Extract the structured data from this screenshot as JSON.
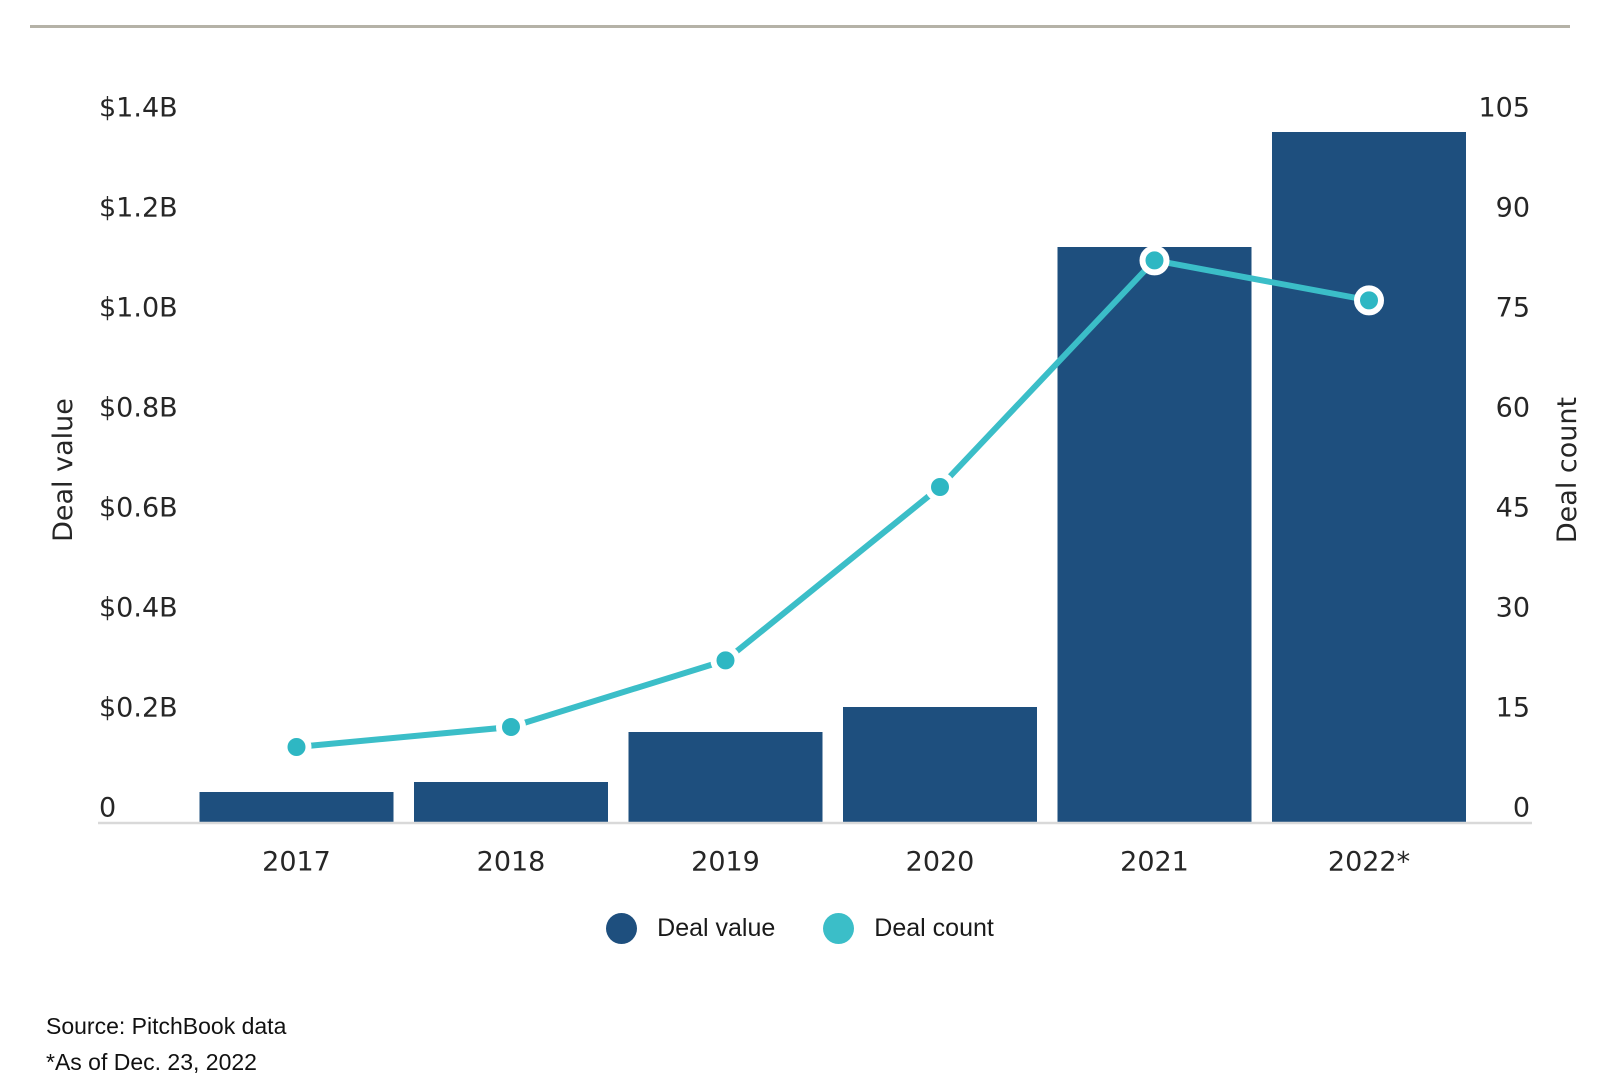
{
  "page": {
    "source_line1": "Source: PitchBook data",
    "source_line2": "*As of Dec. 23, 2022"
  },
  "chart_data": {
    "type": "bar",
    "subtype": "combo bar + line, dual axis",
    "categories": [
      "2017",
      "2018",
      "2019",
      "2020",
      "2021",
      "2022*"
    ],
    "series": [
      {
        "name": "Deal value",
        "type": "bar",
        "axis": "left",
        "unit": "USD billions",
        "values": [
          0.03,
          0.05,
          0.15,
          0.2,
          1.12,
          1.35
        ],
        "color": "#1E4F7E"
      },
      {
        "name": "Deal count",
        "type": "line",
        "axis": "right",
        "values": [
          9,
          12,
          22,
          48,
          82,
          76
        ],
        "color": "#3BBEC8",
        "marker_fill": "#2EB7C3"
      }
    ],
    "left_axis": {
      "title": "Deal value",
      "range": [
        0,
        1.4
      ],
      "ticks": [
        {
          "label": "$1.4B",
          "value": 1.4
        },
        {
          "label": "$1.2B",
          "value": 1.2
        },
        {
          "label": "$1.0B",
          "value": 1.0
        },
        {
          "label": "$0.8B",
          "value": 0.8
        },
        {
          "label": "$0.6B",
          "value": 0.6
        },
        {
          "label": "$0.4B",
          "value": 0.4
        },
        {
          "label": "$0.2B",
          "value": 0.2
        },
        {
          "label": "0",
          "value": 0
        }
      ]
    },
    "right_axis": {
      "title": "Deal count",
      "range": [
        0,
        105
      ],
      "ticks": [
        {
          "label": "105",
          "value": 105
        },
        {
          "label": "90",
          "value": 90
        },
        {
          "label": "75",
          "value": 75
        },
        {
          "label": "60",
          "value": 60
        },
        {
          "label": "45",
          "value": 45
        },
        {
          "label": "30",
          "value": 30
        },
        {
          "label": "15",
          "value": 15
        },
        {
          "label": "0",
          "value": 0
        }
      ]
    },
    "grid": false,
    "legend_position": "bottom-center",
    "legend": [
      {
        "label": "Deal value",
        "color": "#1E4F7E"
      },
      {
        "label": "Deal count",
        "color": "#3BBEC8"
      }
    ]
  }
}
